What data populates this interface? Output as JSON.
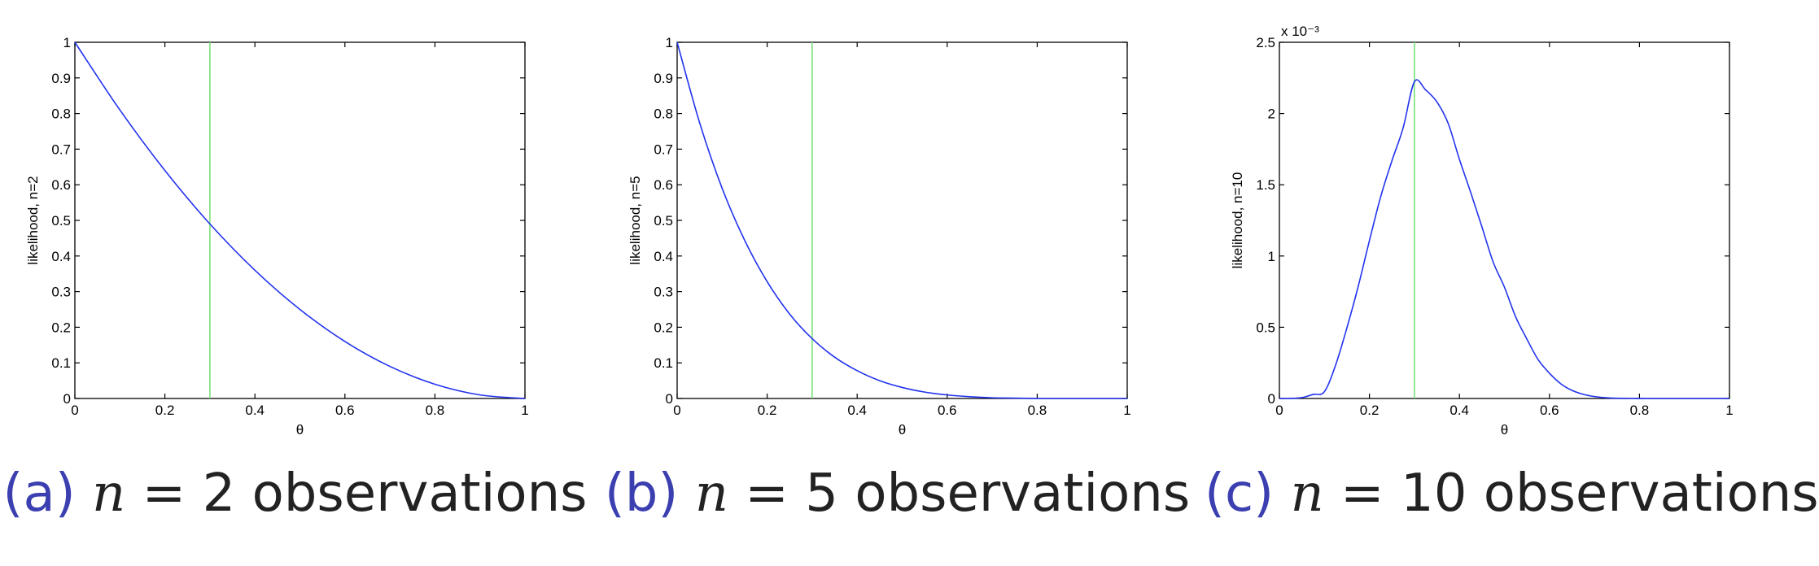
{
  "chart_data": [
    {
      "type": "line",
      "caption": {
        "label": "(a)",
        "var": "n",
        "eq": " = 2 observations"
      },
      "xlabel": "θ",
      "ylabel": "likelihood, n=2",
      "xlim": [
        0,
        1
      ],
      "ylim": [
        0,
        1
      ],
      "xticks": [
        "0",
        "0.2",
        "0.4",
        "0.6",
        "0.8",
        "1"
      ],
      "yticks": [
        "0",
        "0.1",
        "0.2",
        "0.3",
        "0.4",
        "0.5",
        "0.6",
        "0.7",
        "0.8",
        "0.9",
        "1"
      ],
      "exponent_label": "",
      "vline_x": 0.3,
      "series": [
        {
          "color": "#2233ee",
          "x": [
            0,
            0.1,
            0.2,
            0.3,
            0.4,
            0.5,
            0.6,
            0.7,
            0.8,
            0.9,
            1.0
          ],
          "y": [
            1.0,
            0.81,
            0.64,
            0.49,
            0.36,
            0.25,
            0.16,
            0.09,
            0.04,
            0.01,
            0.0
          ]
        }
      ],
      "vline_color": "#7ae07a"
    },
    {
      "type": "line",
      "caption": {
        "label": "(b)",
        "var": "n",
        "eq": " = 5 observations"
      },
      "xlabel": "θ",
      "ylabel": "likelihood, n=5",
      "xlim": [
        0,
        1
      ],
      "ylim": [
        0,
        1
      ],
      "xticks": [
        "0",
        "0.2",
        "0.4",
        "0.6",
        "0.8",
        "1"
      ],
      "yticks": [
        "0",
        "0.1",
        "0.2",
        "0.3",
        "0.4",
        "0.5",
        "0.6",
        "0.7",
        "0.8",
        "0.9",
        "1"
      ],
      "exponent_label": "",
      "vline_x": 0.3,
      "series": [
        {
          "color": "#2233ee",
          "x": [
            0,
            0.05,
            0.1,
            0.15,
            0.2,
            0.25,
            0.3,
            0.35,
            0.4,
            0.45,
            0.5,
            0.55,
            0.6,
            0.65,
            0.7,
            0.75,
            0.8,
            0.85,
            0.9,
            0.95,
            1.0
          ],
          "y": [
            1.0,
            0.774,
            0.59,
            0.444,
            0.328,
            0.237,
            0.168,
            0.116,
            0.078,
            0.05,
            0.031,
            0.018,
            0.01,
            0.005,
            0.002,
            0.001,
            0.0,
            0.0,
            0.0,
            0.0,
            0.0
          ]
        }
      ],
      "vline_color": "#7ae07a"
    },
    {
      "type": "line",
      "caption": {
        "label": "(c)",
        "var": "n",
        "eq": " = 10 observations"
      },
      "xlabel": "θ",
      "ylabel": "likelihood, n=10",
      "xlim": [
        0,
        1
      ],
      "ylim": [
        0,
        2.5
      ],
      "xticks": [
        "0",
        "0.2",
        "0.4",
        "0.6",
        "0.8",
        "1"
      ],
      "yticks": [
        "0",
        "0.5",
        "1",
        "1.5",
        "2",
        "2.5"
      ],
      "exponent_label": "x 10⁻³",
      "vline_x": 0.3,
      "series": [
        {
          "color": "#2233ee",
          "x": [
            0,
            0.025,
            0.05,
            0.075,
            0.1,
            0.125,
            0.15,
            0.175,
            0.2,
            0.225,
            0.25,
            0.275,
            0.3,
            0.325,
            0.35,
            0.375,
            0.4,
            0.425,
            0.45,
            0.475,
            0.5,
            0.525,
            0.55,
            0.575,
            0.6,
            0.625,
            0.65,
            0.675,
            0.7,
            0.725,
            0.75,
            0.775,
            0.8,
            0.825,
            0.85,
            0.875,
            0.9,
            0.95,
            1.0
          ],
          "y": [
            0,
            0.0005,
            0.0063,
            0.0282,
            0.0478,
            0.2357,
            0.4958,
            0.7855,
            1.1074,
            1.4158,
            1.6683,
            1.9004,
            2.2235,
            2.1655,
            2.0814,
            1.9307,
            1.6783,
            1.4466,
            1.2041,
            0.9575,
            0.7813,
            0.5723,
            0.4162,
            0.2719,
            0.1772,
            0.1037,
            0.0569,
            0.0292,
            0.0135,
            0.0055,
            0.002,
            0.0007,
            0.0002,
            0.0,
            0.0,
            0.0,
            0.0,
            0.0,
            0.0
          ]
        }
      ],
      "vline_color": "#7ae07a"
    }
  ]
}
